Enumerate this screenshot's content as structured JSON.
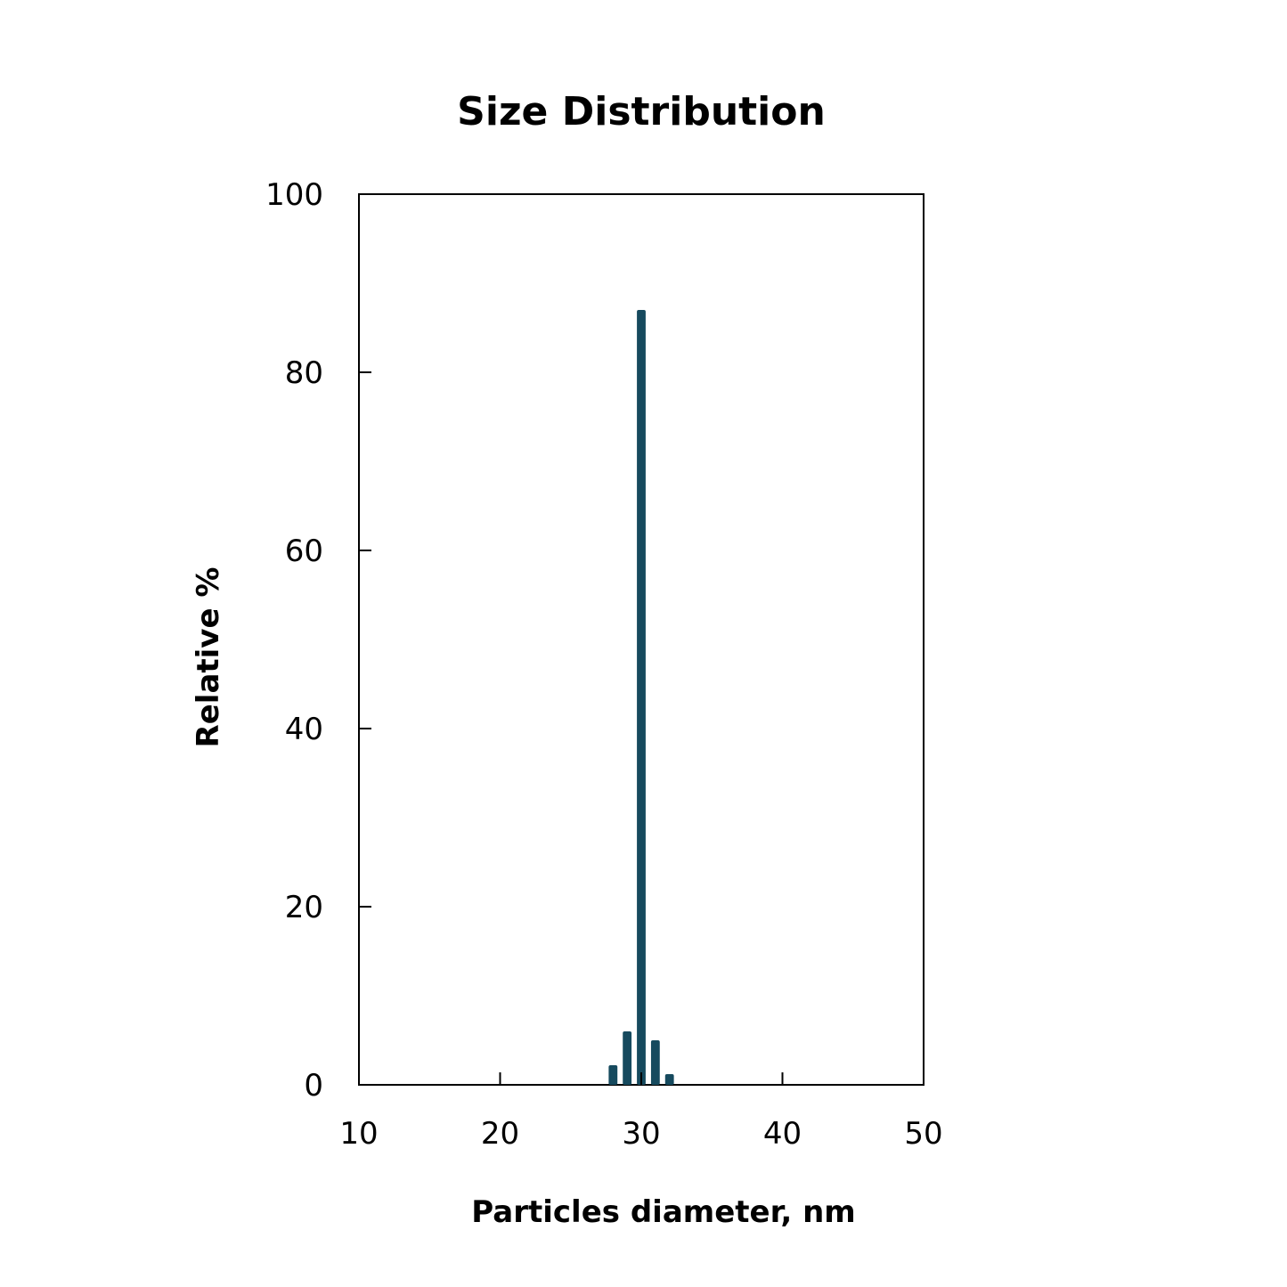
{
  "chart_data": {
    "type": "bar",
    "title": "Size Distribution",
    "xlabel": "Particles diameter, nm",
    "ylabel": "Relative %",
    "x": [
      28,
      29,
      30,
      31,
      32
    ],
    "values": [
      2.2,
      6,
      87,
      5,
      1.2
    ],
    "xlim": [
      10,
      50
    ],
    "ylim": [
      0,
      100
    ],
    "xticks": [
      10,
      20,
      30,
      40,
      50
    ],
    "yticks": [
      0,
      20,
      40,
      60,
      80,
      100
    ],
    "grid": false,
    "bar_color": "#164a5e"
  }
}
